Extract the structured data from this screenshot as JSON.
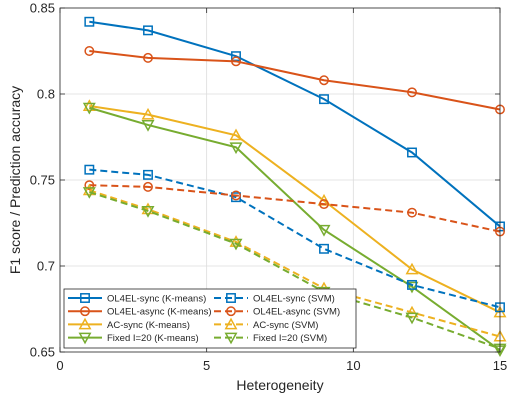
{
  "chart_data": {
    "type": "line",
    "title": "",
    "xlabel": "Heterogeneity",
    "ylabel": "F1 score / Prediction accuracy",
    "xlim": [
      0,
      15
    ],
    "ylim": [
      0.65,
      0.85
    ],
    "xticks": [
      0,
      5,
      10,
      15
    ],
    "yticks": [
      0.65,
      0.7,
      0.75,
      0.8,
      0.85
    ],
    "xtick_labels": [
      "0",
      "5",
      "10",
      "15"
    ],
    "ytick_labels": [
      "0.65",
      "0.7",
      "0.75",
      "0.8",
      "0.85"
    ],
    "grid": true,
    "legend_position": "bottom-left",
    "legend_columns": 2,
    "series": [
      {
        "name": "OL4EL-sync (K-means)",
        "color": "#0072BD",
        "line": "solid",
        "marker": "square",
        "x": [
          1,
          3,
          6,
          9,
          12,
          15
        ],
        "y": [
          0.842,
          0.837,
          0.822,
          0.797,
          0.766,
          0.723
        ]
      },
      {
        "name": "OL4EL-async (K-means)",
        "color": "#D95319",
        "line": "solid",
        "marker": "circle",
        "x": [
          1,
          3,
          6,
          9,
          12,
          15
        ],
        "y": [
          0.825,
          0.821,
          0.819,
          0.808,
          0.801,
          0.791
        ]
      },
      {
        "name": "AC-sync (K-means)",
        "color": "#EDB120",
        "line": "solid",
        "marker": "triangle-up",
        "x": [
          1,
          3,
          6,
          9,
          12,
          15
        ],
        "y": [
          0.793,
          0.788,
          0.776,
          0.738,
          0.698,
          0.673
        ]
      },
      {
        "name": "Fixed I=20 (K-means)",
        "color": "#77AC30",
        "line": "solid",
        "marker": "triangle-down",
        "x": [
          1,
          3,
          6,
          9,
          12,
          15
        ],
        "y": [
          0.792,
          0.782,
          0.769,
          0.721,
          0.688,
          0.651
        ]
      },
      {
        "name": "OL4EL-sync (SVM)",
        "color": "#0072BD",
        "line": "dashed",
        "marker": "square",
        "x": [
          1,
          3,
          6,
          9,
          12,
          15
        ],
        "y": [
          0.756,
          0.753,
          0.74,
          0.71,
          0.689,
          0.676
        ]
      },
      {
        "name": "OL4EL-async (SVM)",
        "color": "#D95319",
        "line": "dashed",
        "marker": "circle",
        "x": [
          1,
          3,
          6,
          9,
          12,
          15
        ],
        "y": [
          0.747,
          0.746,
          0.741,
          0.736,
          0.731,
          0.72
        ]
      },
      {
        "name": "AC-sync (SVM)",
        "color": "#EDB120",
        "line": "dashed",
        "marker": "triangle-up",
        "x": [
          1,
          3,
          6,
          9,
          12,
          15
        ],
        "y": [
          0.744,
          0.733,
          0.714,
          0.687,
          0.673,
          0.659
        ]
      },
      {
        "name": "Fixed I=20 (SVM)",
        "color": "#77AC30",
        "line": "dashed",
        "marker": "triangle-down",
        "x": [
          1,
          3,
          6,
          9,
          12,
          15
        ],
        "y": [
          0.743,
          0.732,
          0.713,
          0.685,
          0.67,
          0.652
        ]
      }
    ]
  }
}
